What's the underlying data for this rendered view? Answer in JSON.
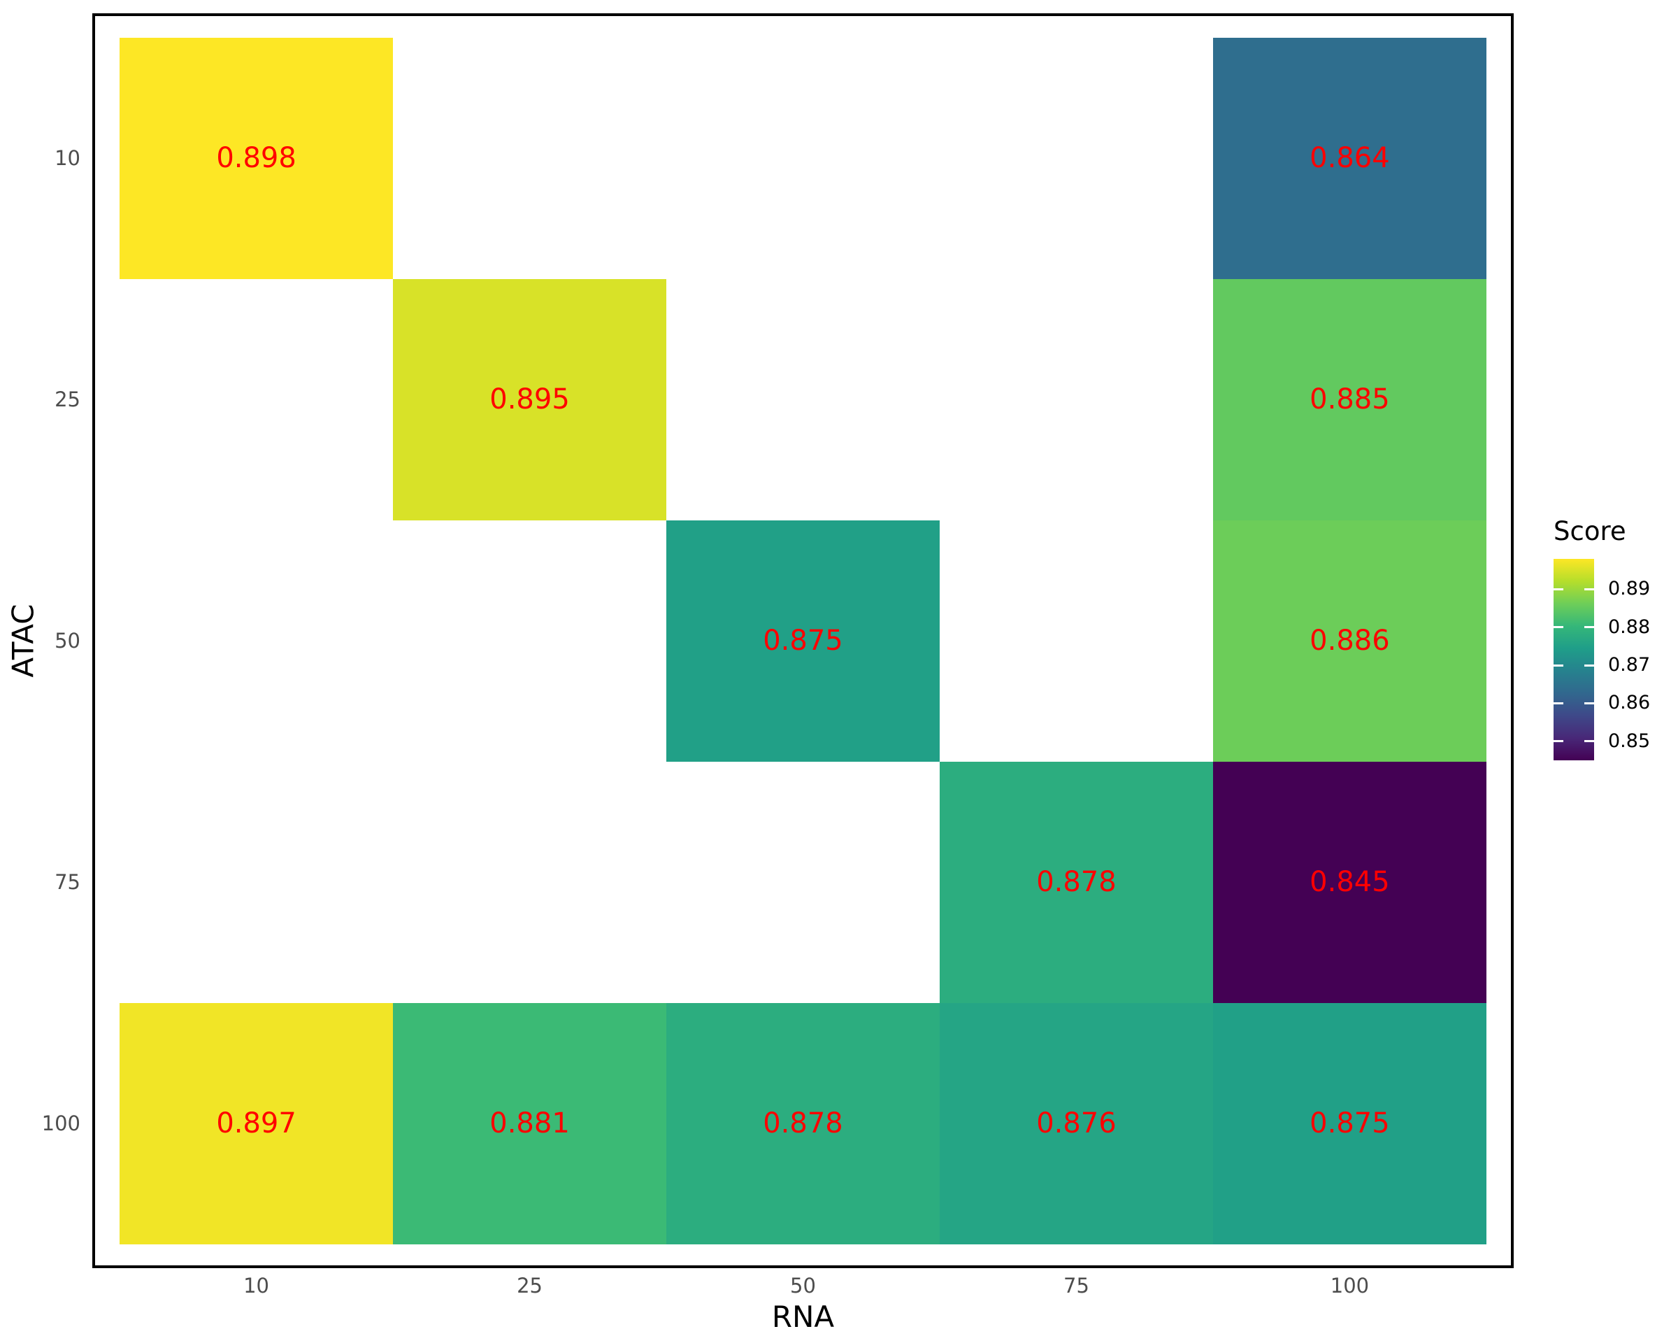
{
  "figure": {
    "background": "#ffffff",
    "panel_border_color": "#000000",
    "axis_tick_label_color": "#4d4d4d",
    "axis_title_color": "#000000"
  },
  "chart_data": {
    "type": "heatmap",
    "title": "",
    "xlabel": "RNA",
    "ylabel": "ATAC",
    "x_categories": [
      "10",
      "25",
      "50",
      "75",
      "100"
    ],
    "y_categories": [
      "10",
      "25",
      "50",
      "75",
      "100"
    ],
    "grid": false,
    "legend_position": "right",
    "value_label_color": "#ff0000",
    "domain": [
      0.845,
      0.898
    ],
    "colormap": {
      "name": "viridis",
      "stops": [
        "#440154",
        "#482878",
        "#3e4989",
        "#31688e",
        "#26828e",
        "#1f9e89",
        "#35b779",
        "#6ece58",
        "#b5de2b",
        "#fde725"
      ]
    },
    "cells": [
      {
        "x": "10",
        "y": "10",
        "value": 0.898
      },
      {
        "x": "100",
        "y": "10",
        "value": 0.864
      },
      {
        "x": "25",
        "y": "25",
        "value": 0.895
      },
      {
        "x": "100",
        "y": "25",
        "value": 0.885
      },
      {
        "x": "50",
        "y": "50",
        "value": 0.875
      },
      {
        "x": "100",
        "y": "50",
        "value": 0.886
      },
      {
        "x": "75",
        "y": "75",
        "value": 0.878
      },
      {
        "x": "100",
        "y": "75",
        "value": 0.845
      },
      {
        "x": "10",
        "y": "100",
        "value": 0.897
      },
      {
        "x": "25",
        "y": "100",
        "value": 0.881
      },
      {
        "x": "50",
        "y": "100",
        "value": 0.878
      },
      {
        "x": "75",
        "y": "100",
        "value": 0.876
      },
      {
        "x": "100",
        "y": "100",
        "value": 0.875
      }
    ],
    "legend": {
      "title": "Score",
      "tick_values": [
        0.89,
        0.88,
        0.87,
        0.86,
        0.85
      ],
      "tick_labels": [
        "0.89",
        "0.88",
        "0.87",
        "0.86",
        "0.85"
      ]
    }
  }
}
